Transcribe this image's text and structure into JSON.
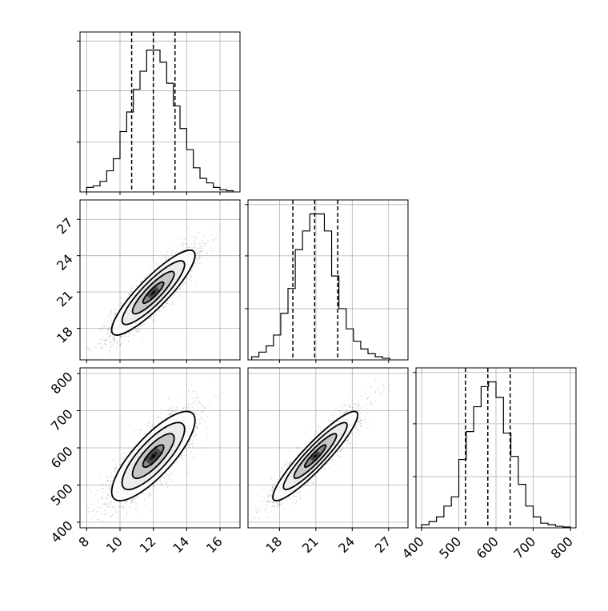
{
  "chart_data": {
    "type": "corner",
    "title": "",
    "variables": [
      {
        "range": [
          7.6,
          17.2
        ],
        "ticks": [
          8,
          10,
          12,
          14,
          16
        ],
        "tick_labels": [
          "8",
          "10",
          "12",
          "14",
          "16"
        ],
        "quantiles": [
          10.7,
          12.0,
          13.3
        ],
        "hist": {
          "edges": [
            8.0,
            8.4,
            8.8,
            9.2,
            9.6,
            10.0,
            10.4,
            10.8,
            11.2,
            11.6,
            12.0,
            12.4,
            12.8,
            13.2,
            13.6,
            14.0,
            14.4,
            14.8,
            15.2,
            15.6,
            16.0,
            16.4,
            16.8
          ],
          "counts": [
            0.03,
            0.04,
            0.07,
            0.14,
            0.22,
            0.4,
            0.53,
            0.68,
            0.8,
            0.94,
            0.94,
            0.86,
            0.72,
            0.57,
            0.42,
            0.28,
            0.16,
            0.09,
            0.06,
            0.03,
            0.015,
            0.008
          ],
          "yticks": [
            0.33,
            0.67,
            1.0
          ],
          "ymax": 1.06
        }
      },
      {
        "range": [
          15.4,
          28.6
        ],
        "ticks": [
          18,
          21,
          24,
          27
        ],
        "tick_labels": [
          "18",
          "21",
          "24",
          "27"
        ],
        "quantiles": [
          19.1,
          20.9,
          22.8
        ],
        "hist": {
          "edges": [
            15.7,
            16.3,
            16.9,
            17.5,
            18.1,
            18.7,
            19.3,
            19.9,
            20.5,
            21.1,
            21.7,
            22.3,
            22.9,
            23.5,
            24.1,
            24.7,
            25.3,
            25.9,
            26.5,
            27.1
          ],
          "counts": [
            0.02,
            0.05,
            0.09,
            0.16,
            0.3,
            0.46,
            0.71,
            0.83,
            0.94,
            0.94,
            0.83,
            0.54,
            0.33,
            0.2,
            0.12,
            0.07,
            0.04,
            0.02,
            0.01
          ],
          "yticks": [
            0.33,
            0.67,
            1.0
          ],
          "ymax": 1.03
        }
      },
      {
        "range": [
          385,
          815
        ],
        "ticks": [
          400,
          500,
          600,
          700,
          800
        ],
        "tick_labels": [
          "400",
          "500",
          "600",
          "700",
          "800"
        ],
        "quantiles": [
          518,
          578,
          638
        ],
        "hist": {
          "edges": [
            400,
            420,
            440,
            460,
            480,
            500,
            520,
            540,
            560,
            580,
            600,
            620,
            640,
            660,
            680,
            700,
            720,
            740,
            760,
            780,
            800
          ],
          "counts": [
            0.02,
            0.04,
            0.07,
            0.14,
            0.2,
            0.44,
            0.62,
            0.78,
            0.91,
            0.94,
            0.84,
            0.61,
            0.46,
            0.28,
            0.14,
            0.07,
            0.03,
            0.02,
            0.01,
            0.005
          ],
          "yticks": [
            0.33,
            0.67,
            1.0
          ],
          "ymax": 1.03
        }
      }
    ],
    "pairs": [
      {
        "x_index": 0,
        "y_index": 1,
        "mean": [
          12.0,
          20.95
        ],
        "sd": [
          1.25,
          1.75
        ],
        "corr": 0.88,
        "contour_levels_sigma": [
          0.5,
          1.0,
          1.5,
          2.0
        ]
      },
      {
        "x_index": 0,
        "y_index": 2,
        "mean": [
          12.0,
          578
        ],
        "sd": [
          1.25,
          60
        ],
        "corr": 0.8,
        "contour_levels_sigma": [
          0.5,
          1.0,
          1.5,
          2.0
        ]
      },
      {
        "x_index": 1,
        "y_index": 2,
        "mean": [
          20.95,
          578
        ],
        "sd": [
          1.75,
          60
        ],
        "corr": 0.92,
        "contour_levels_sigma": [
          0.5,
          1.0,
          1.5,
          2.0
        ]
      }
    ],
    "grid": true,
    "legend": "none"
  }
}
